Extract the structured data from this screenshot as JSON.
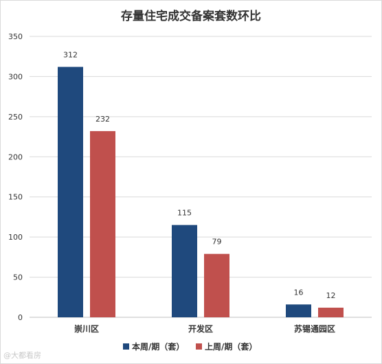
{
  "chart_data": {
    "type": "bar",
    "title": "存量住宅成交备案套数环比",
    "categories": [
      "崇川区",
      "开发区",
      "苏锡通园区"
    ],
    "series": [
      {
        "name": "本周/期（套）",
        "values": [
          312,
          115,
          16
        ],
        "color": "#1f497d"
      },
      {
        "name": "上周/期（套）",
        "values": [
          232,
          79,
          12
        ],
        "color": "#c0504d"
      }
    ],
    "ylim": [
      0,
      350
    ],
    "yticks": [
      0,
      50,
      100,
      150,
      200,
      250,
      300,
      350
    ],
    "grid": true,
    "legend_position": "bottom",
    "data_labels": true
  },
  "watermark": "@大都看房"
}
